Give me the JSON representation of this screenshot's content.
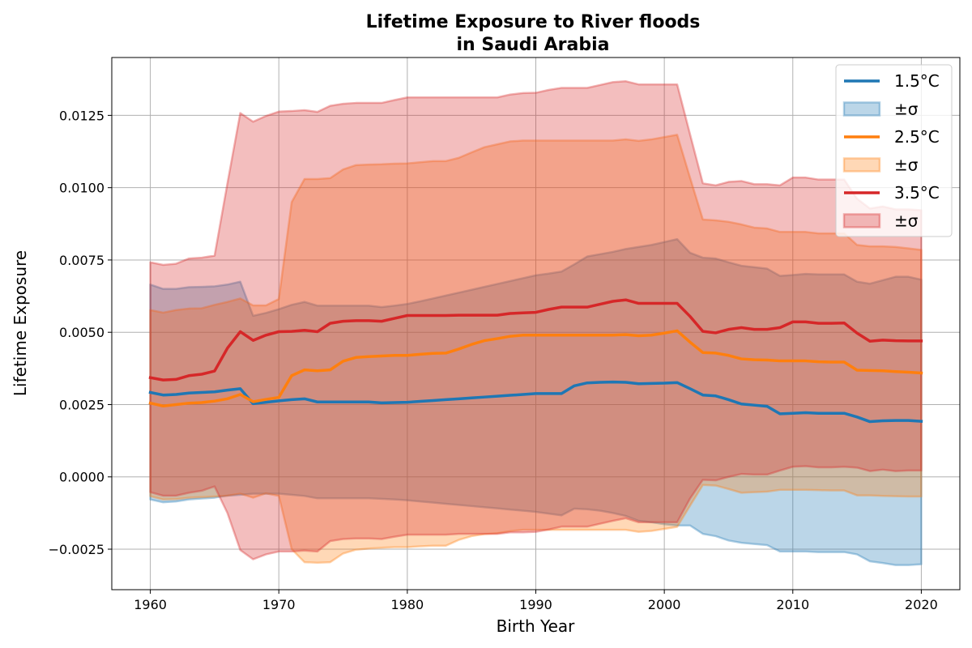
{
  "chart_data": {
    "type": "line",
    "title_line1": "Lifetime Exposure to River floods",
    "title_line2": "in Saudi Arabia",
    "xlabel": "Birth Year",
    "ylabel": "Lifetime Exposure",
    "xlim": [
      1957,
      2023
    ],
    "ylim": [
      -0.0039,
      0.0145
    ],
    "xticks": [
      1960,
      1970,
      1980,
      1990,
      2000,
      2010,
      2020
    ],
    "xtick_labels": [
      "1960",
      "1970",
      "1980",
      "1990",
      "2000",
      "2010",
      "2020"
    ],
    "yticks": [
      -0.0025,
      0.0,
      0.0025,
      0.005,
      0.0075,
      0.01,
      0.0125
    ],
    "ytick_labels": [
      "−0.0025",
      "0.0000",
      "0.0025",
      "0.0050",
      "0.0075",
      "0.0100",
      "0.0125"
    ],
    "grid": true,
    "legend_position": "top-right",
    "legend": [
      {
        "label": "1.5°C",
        "kind": "line",
        "series": 0
      },
      {
        "label": "±σ",
        "kind": "band",
        "series": 0
      },
      {
        "label": "2.5°C",
        "kind": "line",
        "series": 1
      },
      {
        "label": "±σ",
        "kind": "band",
        "series": 1
      },
      {
        "label": "3.5°C",
        "kind": "line",
        "series": 2
      },
      {
        "label": "±σ",
        "kind": "band",
        "series": 2
      }
    ],
    "x": [
      1960,
      1961,
      1962,
      1963,
      1964,
      1965,
      1966,
      1967,
      1968,
      1969,
      1970,
      1971,
      1972,
      1973,
      1974,
      1975,
      1976,
      1977,
      1978,
      1979,
      1980,
      1981,
      1982,
      1983,
      1984,
      1985,
      1986,
      1987,
      1988,
      1989,
      1990,
      1991,
      1992,
      1993,
      1994,
      1995,
      1996,
      1997,
      1998,
      1999,
      2000,
      2001,
      2002,
      2003,
      2004,
      2005,
      2006,
      2007,
      2008,
      2009,
      2010,
      2011,
      2012,
      2013,
      2014,
      2015,
      2016,
      2017,
      2018,
      2019,
      2020
    ],
    "series": [
      {
        "name": "1.5°C",
        "color": "#1f77b4",
        "mean": [
          0.00292,
          0.00283,
          0.00285,
          0.0029,
          0.00292,
          0.00294,
          0.003,
          0.00305,
          0.00253,
          0.00258,
          0.00263,
          0.00267,
          0.0027,
          0.00259,
          0.00259,
          0.00259,
          0.00259,
          0.00259,
          0.00256,
          0.00257,
          0.00258,
          0.00261,
          0.00264,
          0.00267,
          0.0027,
          0.00273,
          0.00276,
          0.00279,
          0.00282,
          0.00285,
          0.00288,
          0.00288,
          0.00288,
          0.00315,
          0.00325,
          0.00327,
          0.00328,
          0.00327,
          0.00322,
          0.00323,
          0.00324,
          0.00326,
          0.00305,
          0.00283,
          0.0028,
          0.00267,
          0.00252,
          0.00248,
          0.00244,
          0.00218,
          0.0022,
          0.00222,
          0.0022,
          0.0022,
          0.0022,
          0.00207,
          0.00191,
          0.00194,
          0.00195,
          0.00195,
          0.00192
        ],
        "upper": [
          0.00665,
          0.0065,
          0.0065,
          0.00656,
          0.00657,
          0.00659,
          0.00665,
          0.00675,
          0.00557,
          0.00567,
          0.0058,
          0.00595,
          0.00605,
          0.00592,
          0.00592,
          0.00592,
          0.00592,
          0.00592,
          0.00587,
          0.00592,
          0.00598,
          0.00607,
          0.00617,
          0.00627,
          0.00637,
          0.00647,
          0.00657,
          0.00667,
          0.00677,
          0.00687,
          0.00697,
          0.00703,
          0.0071,
          0.00735,
          0.00762,
          0.0077,
          0.00778,
          0.00788,
          0.00795,
          0.00802,
          0.00812,
          0.00822,
          0.00775,
          0.00758,
          0.00755,
          0.00742,
          0.0073,
          0.00725,
          0.0072,
          0.00695,
          0.00698,
          0.00702,
          0.007,
          0.007,
          0.007,
          0.00675,
          0.00668,
          0.0068,
          0.00692,
          0.00692,
          0.00682
        ],
        "lower": [
          -0.00078,
          -0.00088,
          -0.00085,
          -0.00078,
          -0.00075,
          -0.00072,
          -0.00065,
          -0.00062,
          -0.00058,
          -0.00058,
          -0.00058,
          -0.00062,
          -0.00066,
          -0.00074,
          -0.00074,
          -0.00074,
          -0.00074,
          -0.00074,
          -0.00076,
          -0.00078,
          -0.00081,
          -0.00085,
          -0.00089,
          -0.00093,
          -0.00097,
          -0.00101,
          -0.00105,
          -0.00109,
          -0.00113,
          -0.00117,
          -0.00121,
          -0.00127,
          -0.00133,
          -0.0011,
          -0.00112,
          -0.00117,
          -0.00125,
          -0.00135,
          -0.00152,
          -0.00157,
          -0.00164,
          -0.00168,
          -0.00168,
          -0.00197,
          -0.00205,
          -0.0022,
          -0.00228,
          -0.00232,
          -0.00236,
          -0.00258,
          -0.00258,
          -0.00258,
          -0.0026,
          -0.0026,
          -0.0026,
          -0.00268,
          -0.00292,
          -0.00298,
          -0.00305,
          -0.00305,
          -0.00302
        ]
      },
      {
        "name": "2.5°C",
        "color": "#ff7f0e",
        "mean": [
          0.00255,
          0.00245,
          0.0025,
          0.00255,
          0.00257,
          0.00262,
          0.0027,
          0.00285,
          0.0026,
          0.00268,
          0.00275,
          0.0035,
          0.0037,
          0.00367,
          0.0037,
          0.004,
          0.00413,
          0.00416,
          0.00418,
          0.0042,
          0.0042,
          0.00424,
          0.00427,
          0.00428,
          0.00442,
          0.00458,
          0.00471,
          0.00478,
          0.00486,
          0.0049,
          0.0049,
          0.0049,
          0.0049,
          0.0049,
          0.0049,
          0.0049,
          0.0049,
          0.00492,
          0.00488,
          0.0049,
          0.00497,
          0.00505,
          0.00466,
          0.0043,
          0.00428,
          0.0042,
          0.00408,
          0.00405,
          0.00404,
          0.00401,
          0.00401,
          0.00401,
          0.00398,
          0.00397,
          0.00397,
          0.00369,
          0.00368,
          0.00367,
          0.00364,
          0.00362,
          0.00359
        ],
        "upper": [
          0.00577,
          0.00568,
          0.00577,
          0.00582,
          0.00583,
          0.00595,
          0.00605,
          0.00617,
          0.00593,
          0.00593,
          0.00615,
          0.0095,
          0.0103,
          0.0103,
          0.01033,
          0.01063,
          0.01078,
          0.0108,
          0.01081,
          0.01083,
          0.01084,
          0.01088,
          0.01092,
          0.01092,
          0.01103,
          0.01122,
          0.0114,
          0.0115,
          0.0116,
          0.01163,
          0.01163,
          0.01163,
          0.01163,
          0.01163,
          0.01163,
          0.01163,
          0.01163,
          0.01167,
          0.01162,
          0.01167,
          0.01175,
          0.01183,
          0.01035,
          0.0089,
          0.00887,
          0.00882,
          0.00873,
          0.00862,
          0.00859,
          0.00847,
          0.00847,
          0.00847,
          0.00842,
          0.00842,
          0.00842,
          0.00802,
          0.00797,
          0.00797,
          0.00795,
          0.0079,
          0.00785
        ],
        "lower": [
          -0.00067,
          -0.00078,
          -0.00077,
          -0.00072,
          -0.0007,
          -0.00068,
          -0.00065,
          -0.00058,
          -0.00072,
          -0.00057,
          -0.00066,
          -0.0025,
          -0.00295,
          -0.00297,
          -0.00295,
          -0.00265,
          -0.00252,
          -0.00248,
          -0.00245,
          -0.00243,
          -0.00243,
          -0.0024,
          -0.00238,
          -0.00238,
          -0.00218,
          -0.00205,
          -0.00198,
          -0.00195,
          -0.00188,
          -0.00183,
          -0.00183,
          -0.00183,
          -0.00183,
          -0.00183,
          -0.00183,
          -0.00183,
          -0.00183,
          -0.00183,
          -0.0019,
          -0.00187,
          -0.0018,
          -0.00173,
          -0.001,
          -0.00028,
          -0.0003,
          -0.00042,
          -0.00055,
          -0.00053,
          -0.00051,
          -0.00045,
          -0.00045,
          -0.00045,
          -0.00046,
          -0.00047,
          -0.00047,
          -0.00064,
          -0.00064,
          -0.00066,
          -0.00067,
          -0.00068,
          -0.00068
        ]
      },
      {
        "name": "3.5°C",
        "color": "#d62728",
        "mean": [
          0.00343,
          0.00335,
          0.00337,
          0.0035,
          0.00355,
          0.00366,
          0.00445,
          0.00502,
          0.00472,
          0.0049,
          0.00502,
          0.00503,
          0.00507,
          0.00502,
          0.00531,
          0.00538,
          0.0054,
          0.0054,
          0.00538,
          0.00548,
          0.00558,
          0.00558,
          0.00558,
          0.00558,
          0.00559,
          0.00559,
          0.00559,
          0.00559,
          0.00565,
          0.00567,
          0.00569,
          0.00579,
          0.00587,
          0.00587,
          0.00587,
          0.00597,
          0.00607,
          0.00612,
          0.006,
          0.006,
          0.006,
          0.006,
          0.00555,
          0.00503,
          0.00498,
          0.0051,
          0.00516,
          0.0051,
          0.0051,
          0.00516,
          0.00536,
          0.00536,
          0.00531,
          0.00531,
          0.00532,
          0.00497,
          0.00469,
          0.00473,
          0.00471,
          0.0047,
          0.0047
        ],
        "upper": [
          0.00742,
          0.00733,
          0.00737,
          0.00755,
          0.00758,
          0.00765,
          0.01015,
          0.01258,
          0.01228,
          0.01248,
          0.01263,
          0.01265,
          0.01268,
          0.01262,
          0.01283,
          0.0129,
          0.01293,
          0.01293,
          0.01293,
          0.01303,
          0.01312,
          0.01312,
          0.01312,
          0.01312,
          0.01312,
          0.01312,
          0.01312,
          0.01312,
          0.01322,
          0.01327,
          0.01328,
          0.01338,
          0.01345,
          0.01345,
          0.01345,
          0.01355,
          0.01365,
          0.01368,
          0.01357,
          0.01357,
          0.01357,
          0.01357,
          0.01185,
          0.01015,
          0.01008,
          0.0102,
          0.01023,
          0.01012,
          0.01012,
          0.01008,
          0.01035,
          0.01035,
          0.01028,
          0.01028,
          0.01028,
          0.00962,
          0.00928,
          0.00935,
          0.00925,
          0.00925,
          0.00922
        ],
        "lower": [
          -0.00053,
          -0.00065,
          -0.00065,
          -0.00055,
          -0.00048,
          -0.00033,
          -0.00125,
          -0.00253,
          -0.00285,
          -0.00268,
          -0.00258,
          -0.00258,
          -0.00255,
          -0.00258,
          -0.00222,
          -0.00215,
          -0.00213,
          -0.00213,
          -0.00215,
          -0.00207,
          -0.002,
          -0.002,
          -0.002,
          -0.002,
          -0.00197,
          -0.00197,
          -0.00197,
          -0.00197,
          -0.00192,
          -0.00192,
          -0.0019,
          -0.00182,
          -0.00172,
          -0.00172,
          -0.00172,
          -0.00162,
          -0.00152,
          -0.00143,
          -0.00157,
          -0.00157,
          -0.00157,
          -0.00157,
          -0.00075,
          -0.0001,
          -0.00012,
          0.0,
          0.0001,
          8e-05,
          8e-05,
          0.00022,
          0.00035,
          0.00037,
          0.00033,
          0.00033,
          0.00035,
          0.00032,
          0.0002,
          0.00025,
          0.0002,
          0.00022,
          0.00022
        ]
      }
    ]
  }
}
